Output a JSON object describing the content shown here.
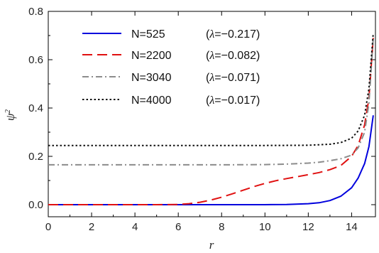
{
  "chart_data": {
    "type": "line",
    "title": "",
    "xlabel": "r",
    "ylabel": "ψ",
    "ylabel_sup": "2",
    "xlim": [
      0,
      15.1
    ],
    "ylim": [
      -0.05,
      0.8
    ],
    "x_ticks": [
      0,
      2,
      4,
      6,
      8,
      10,
      12,
      14
    ],
    "x_tick_labels": [
      "0",
      "2",
      "4",
      "6",
      "8",
      "10",
      "12",
      "14"
    ],
    "y_ticks": [
      0.0,
      0.2,
      0.4,
      0.6,
      0.8
    ],
    "y_tick_labels": [
      "0.0",
      "0.2",
      "0.4",
      "0.6",
      "0.8"
    ],
    "grid": false,
    "legend_position": "top-left",
    "series": [
      {
        "name": "N=525",
        "param_prefix": "(",
        "param_symbol": "λ",
        "param_value": "=−0.217)",
        "color": "#0000dd",
        "dash": "solid",
        "x": [
          0,
          2,
          4,
          6,
          8,
          10,
          11,
          12,
          12.5,
          13,
          13.5,
          14,
          14.3,
          14.6,
          14.8,
          15
        ],
        "y": [
          0,
          0,
          0,
          0,
          0,
          0,
          0.001,
          0.004,
          0.008,
          0.017,
          0.035,
          0.07,
          0.11,
          0.17,
          0.24,
          0.37
        ]
      },
      {
        "name": "N=2200",
        "param_prefix": "(",
        "param_symbol": "λ",
        "param_value": "=−0.082)",
        "color": "#e01010",
        "dash": "dash",
        "x": [
          0,
          2,
          4,
          5,
          6,
          6.5,
          7,
          7.5,
          8,
          8.5,
          9,
          9.5,
          10,
          10.5,
          11,
          11.5,
          12,
          12.5,
          13,
          13.5,
          14,
          14.3,
          14.6,
          14.8,
          15
        ],
        "y": [
          0,
          0,
          0,
          0,
          0.001,
          0.004,
          0.01,
          0.019,
          0.031,
          0.045,
          0.06,
          0.075,
          0.088,
          0.099,
          0.108,
          0.116,
          0.124,
          0.133,
          0.145,
          0.162,
          0.2,
          0.245,
          0.33,
          0.44,
          0.69
        ]
      },
      {
        "name": "N=3040",
        "param_prefix": "(",
        "param_symbol": "λ",
        "param_value": "=−0.071)",
        "color": "#8c8c8c",
        "dash": "dashdot",
        "x": [
          0,
          2,
          4,
          6,
          8,
          10,
          11,
          12,
          12.5,
          13,
          13.5,
          14,
          14.3,
          14.6,
          14.8,
          15
        ],
        "y": [
          0.165,
          0.165,
          0.165,
          0.165,
          0.165,
          0.166,
          0.168,
          0.172,
          0.176,
          0.182,
          0.19,
          0.205,
          0.235,
          0.3,
          0.42,
          0.69
        ]
      },
      {
        "name": "N=4000",
        "param_prefix": "(",
        "param_symbol": "λ",
        "param_value": "=−0.017)",
        "color": "#111111",
        "dash": "dot",
        "x": [
          0,
          2,
          4,
          6,
          8,
          10,
          12,
          12.5,
          13,
          13.5,
          14,
          14.3,
          14.6,
          14.8,
          15
        ],
        "y": [
          0.245,
          0.245,
          0.245,
          0.245,
          0.245,
          0.245,
          0.246,
          0.248,
          0.25,
          0.257,
          0.275,
          0.305,
          0.37,
          0.48,
          0.71
        ]
      }
    ]
  }
}
